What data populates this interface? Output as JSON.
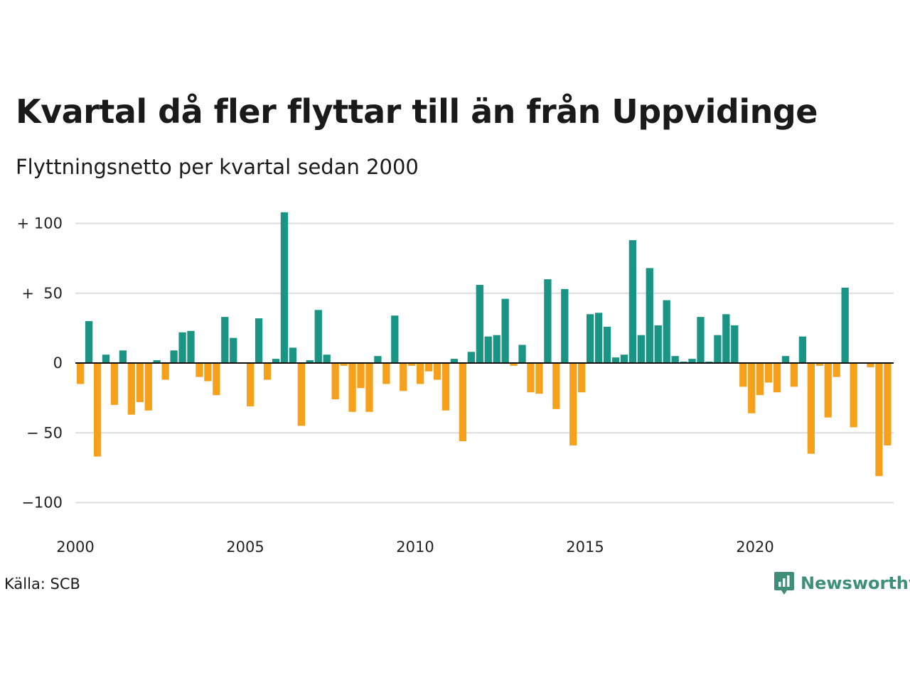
{
  "title": "Kvartal då fler flyttar till än från Uppvidinge",
  "subtitle": "Flyttningsnetto per kvartal sedan 2000",
  "source": "Källa: SCB",
  "brand": "Newsworthy",
  "colors": {
    "positive": "#1a9484",
    "negative": "#f6a11b",
    "grid": "#dcdcdc",
    "brand": "#3e8e7a"
  },
  "chart_data": {
    "type": "bar",
    "x_start": "2000 Q1",
    "x_ticks": [
      "2000",
      "2005",
      "2010",
      "2015",
      "2020"
    ],
    "y_ticks": [
      {
        "value": 100,
        "label": "+ 100"
      },
      {
        "value": 50,
        "label": "+  50"
      },
      {
        "value": 0,
        "label": "0"
      },
      {
        "value": -50,
        "label": "− 50"
      },
      {
        "value": -100,
        "label": "−100"
      }
    ],
    "ylim": [
      -110,
      110
    ],
    "grid": true,
    "values": [
      -15,
      30,
      -67,
      6,
      -30,
      9,
      -37,
      -28,
      -34,
      2,
      -12,
      9,
      22,
      23,
      -10,
      -13,
      -23,
      33,
      18,
      0,
      -31,
      32,
      -12,
      3,
      108,
      11,
      -45,
      2,
      38,
      6,
      -26,
      -2,
      -35,
      -18,
      -35,
      5,
      -15,
      34,
      -20,
      -2,
      -15,
      -6,
      -12,
      -34,
      3,
      -56,
      8,
      56,
      19,
      20,
      46,
      -2,
      13,
      -21,
      -22,
      60,
      -33,
      53,
      -59,
      -21,
      35,
      36,
      26,
      4,
      6,
      88,
      20,
      68,
      27,
      45,
      5,
      1,
      3,
      33,
      1,
      20,
      35,
      27,
      -17,
      -36,
      -23,
      -14,
      -21,
      5,
      -17,
      19,
      -65,
      -2,
      -39,
      -10,
      54,
      -46,
      0,
      -3,
      -81,
      -59
    ]
  }
}
